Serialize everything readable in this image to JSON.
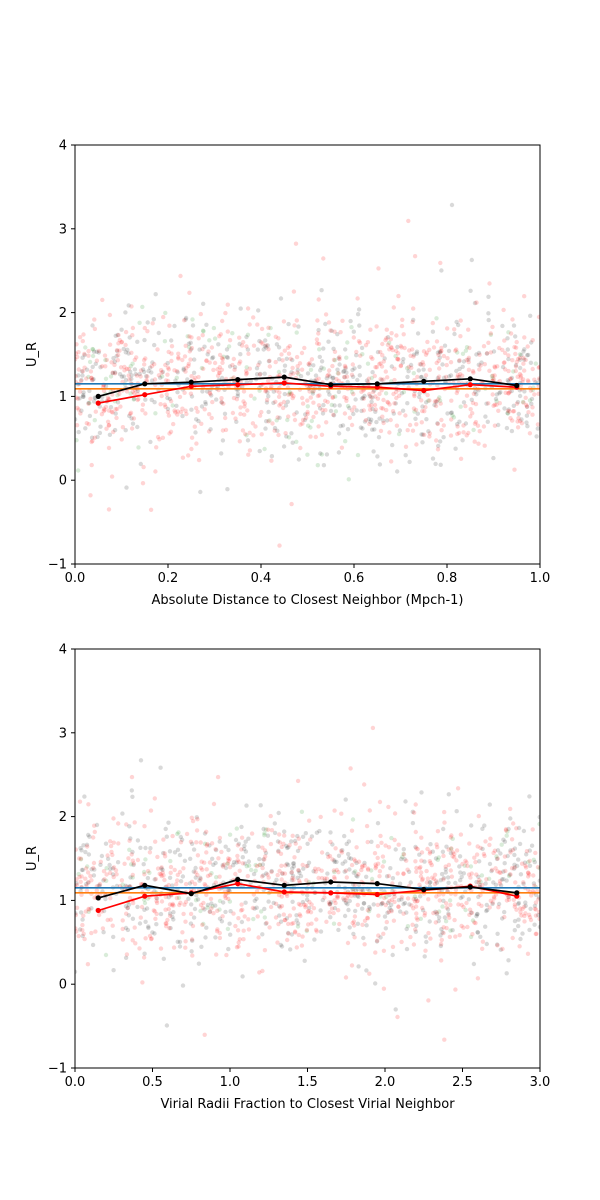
{
  "chart_data": [
    {
      "type": "scatter",
      "title": "",
      "xlabel": "Absolute Distance to Closest Neighbor (Mpch-1)",
      "ylabel": "U_R",
      "xlim": [
        0,
        1
      ],
      "ylim": [
        -1,
        4
      ],
      "xticks": [
        "0.0",
        "0.2",
        "0.4",
        "0.6",
        "0.8",
        "1.0"
      ],
      "yticks": [
        "−1",
        "0",
        "1",
        "2",
        "3",
        "4"
      ],
      "grid": false,
      "hlines": [
        {
          "y": 1.15,
          "color": "#1f77b4"
        },
        {
          "y": 1.09,
          "color": "#ff7f0e"
        }
      ],
      "scatter_cloud": {
        "x_range": [
          0,
          1
        ],
        "y_center": 1.15,
        "y_spread": 0.4,
        "colors": [
          "#ff0000",
          "#000000",
          "#008000"
        ]
      },
      "series": [
        {
          "color": "#000000",
          "x": [
            0.05,
            0.15,
            0.25,
            0.35,
            0.45,
            0.55,
            0.65,
            0.75,
            0.85,
            0.95
          ],
          "values": [
            1.0,
            1.15,
            1.17,
            1.2,
            1.23,
            1.14,
            1.15,
            1.18,
            1.21,
            1.13
          ]
        },
        {
          "color": "#ff0000",
          "x": [
            0.05,
            0.15,
            0.25,
            0.35,
            0.45,
            0.55,
            0.65,
            0.75,
            0.85,
            0.95
          ],
          "values": [
            0.92,
            1.02,
            1.12,
            1.14,
            1.16,
            1.12,
            1.11,
            1.07,
            1.14,
            1.11
          ]
        }
      ]
    },
    {
      "type": "scatter",
      "title": "",
      "xlabel": "Virial Radii Fraction to Closest Virial Neighbor",
      "ylabel": "U_R",
      "xlim": [
        0,
        3
      ],
      "ylim": [
        -1,
        4
      ],
      "xticks": [
        "0.0",
        "0.5",
        "1.0",
        "1.5",
        "2.0",
        "2.5",
        "3.0"
      ],
      "yticks": [
        "−1",
        "0",
        "1",
        "2",
        "3",
        "4"
      ],
      "grid": false,
      "hlines": [
        {
          "y": 1.15,
          "color": "#1f77b4"
        },
        {
          "y": 1.09,
          "color": "#ff7f0e"
        }
      ],
      "scatter_cloud": {
        "x_range": [
          0,
          3
        ],
        "y_center": 1.15,
        "y_spread": 0.4,
        "colors": [
          "#ff0000",
          "#000000",
          "#008000"
        ]
      },
      "series": [
        {
          "color": "#000000",
          "x": [
            0.15,
            0.45,
            0.75,
            1.05,
            1.35,
            1.65,
            1.95,
            2.25,
            2.55,
            2.85
          ],
          "values": [
            1.03,
            1.18,
            1.08,
            1.25,
            1.18,
            1.22,
            1.2,
            1.13,
            1.16,
            1.09
          ]
        },
        {
          "color": "#ff0000",
          "x": [
            0.15,
            0.45,
            0.75,
            1.05,
            1.35,
            1.65,
            1.95,
            2.25,
            2.55,
            2.85
          ],
          "values": [
            0.88,
            1.05,
            1.09,
            1.2,
            1.1,
            1.09,
            1.07,
            1.12,
            1.17,
            1.05
          ]
        }
      ]
    }
  ]
}
